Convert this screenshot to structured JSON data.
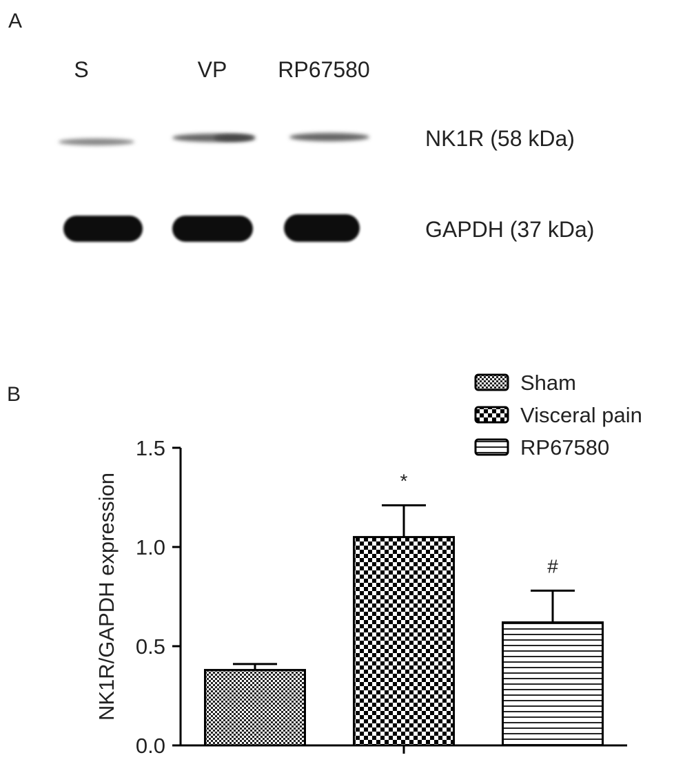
{
  "panel_labels": [
    "A",
    "B"
  ],
  "blot": {
    "lanes": [
      "S",
      "VP",
      "RP67580"
    ],
    "bands": [
      "NK1R (58 kDa)",
      "GAPDH (37 kDa)"
    ]
  },
  "chart_data": {
    "type": "bar",
    "ylabel": "NK1R/GAPDH expression",
    "ylim": [
      0,
      1.5
    ],
    "yticks": [
      {
        "value": 0,
        "label": "0.0"
      },
      0.5,
      {
        "value": 1,
        "label": "1.0"
      },
      {
        "value": 1.5,
        "label": "1.5"
      }
    ],
    "series": [
      {
        "name": "Sham",
        "color": "#000000",
        "values": [
          0.38
        ],
        "errors": [
          0.03
        ]
      },
      {
        "name": "Visceral pain",
        "color": "#000000",
        "values": [
          1.05
        ],
        "errors": [
          0.16
        ],
        "annotation": "*"
      },
      {
        "name": "RP67580",
        "color": "#000000",
        "values": [
          0.62
        ],
        "errors": [
          0.16
        ],
        "annotation": "#"
      }
    ]
  }
}
